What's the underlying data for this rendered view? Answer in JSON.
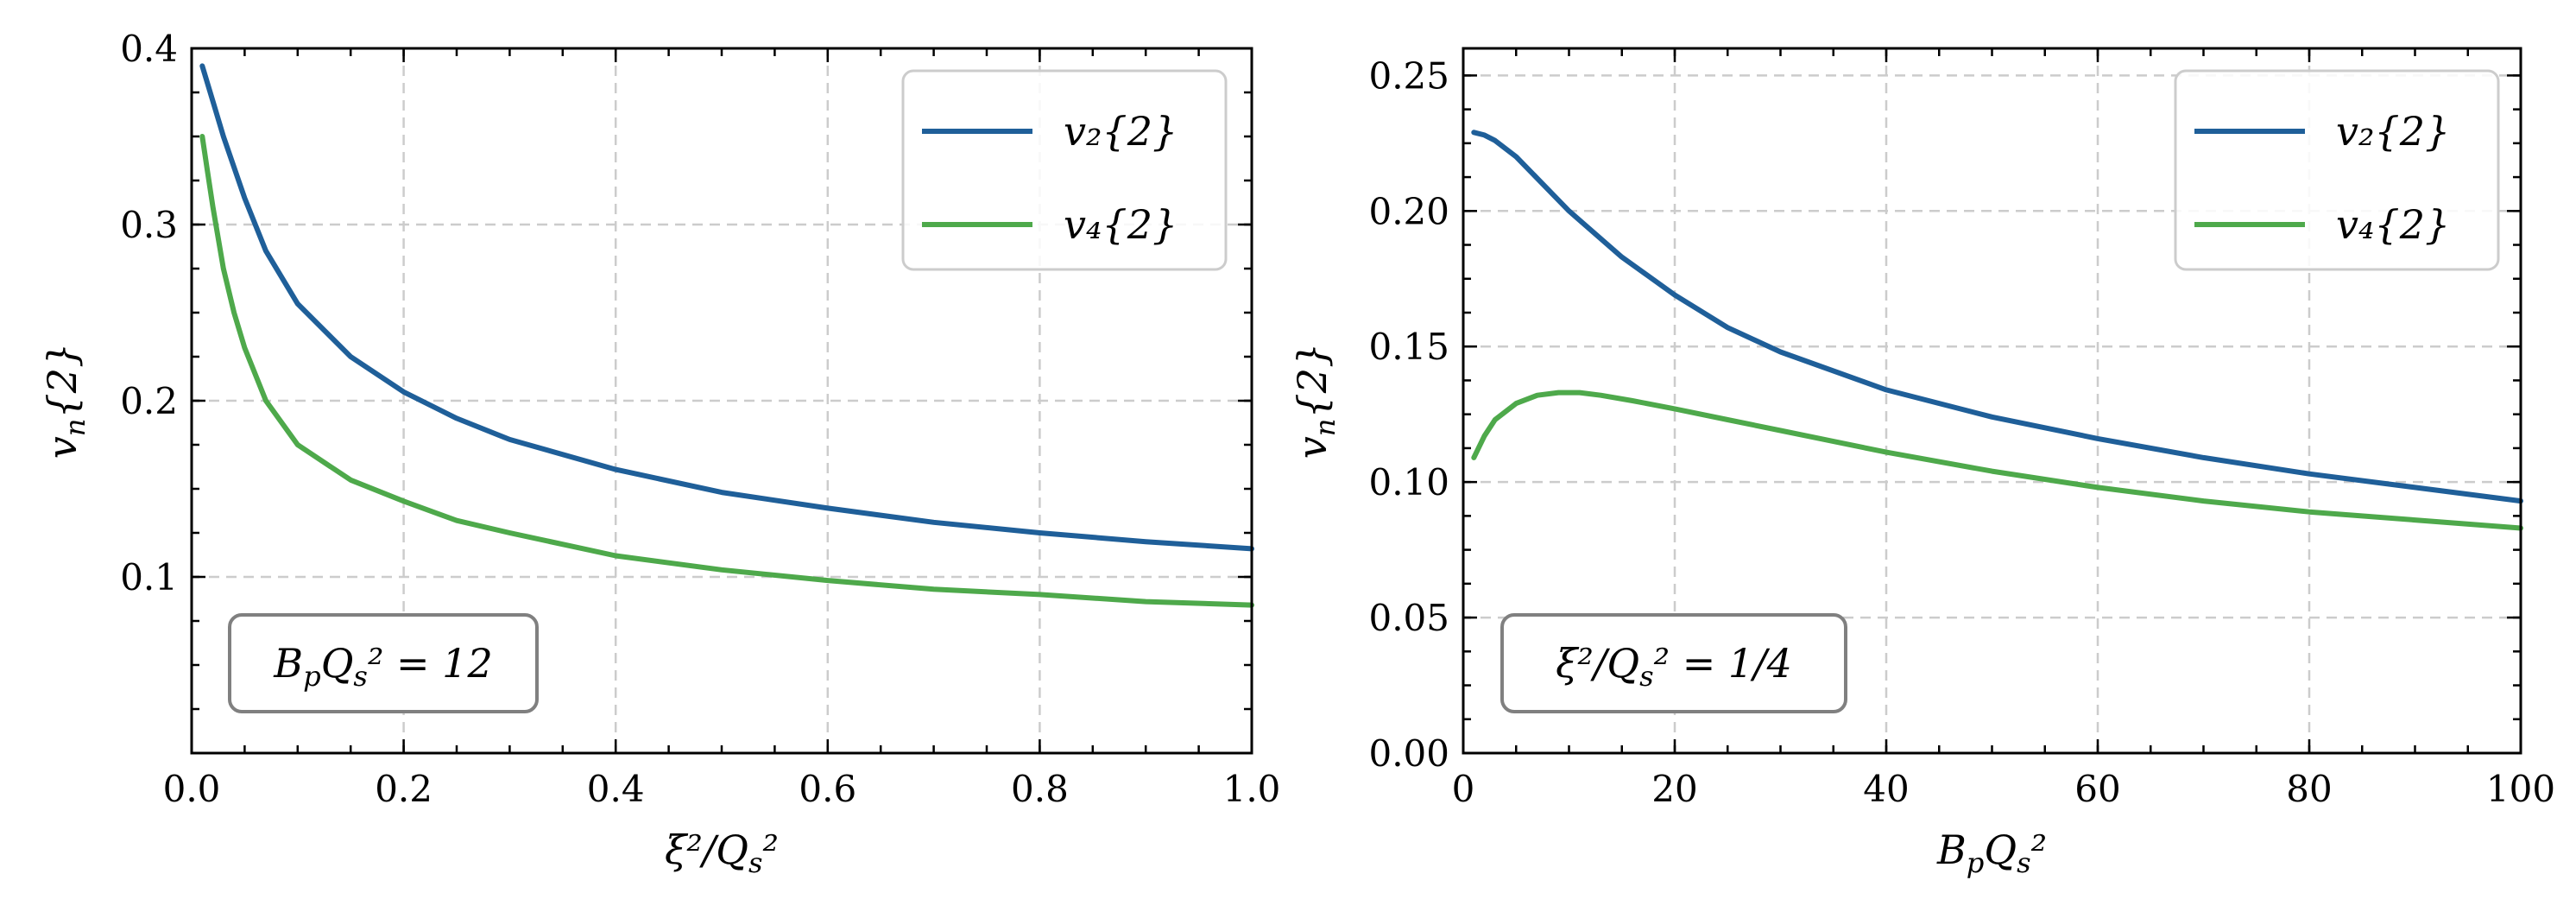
{
  "chart_data": [
    {
      "type": "line",
      "xlabel": "ξ²/Q_s²",
      "ylabel": "v_n{2}",
      "xlim": [
        0.0,
        1.0
      ],
      "ylim": [
        0.0,
        0.4
      ],
      "xticks": [
        "0.0",
        "0.2",
        "0.4",
        "0.6",
        "0.8",
        "1.0"
      ],
      "yticks": [
        "0.1",
        "0.2",
        "0.3",
        "0.4"
      ],
      "grid": true,
      "legend_position": "top-right",
      "annotation": "B_pQ_s² = 12",
      "series": [
        {
          "name": "v₂{2}",
          "color": "#1f5f99",
          "x": [
            0.01,
            0.02,
            0.03,
            0.05,
            0.07,
            0.1,
            0.15,
            0.2,
            0.25,
            0.3,
            0.4,
            0.5,
            0.6,
            0.7,
            0.8,
            0.9,
            1.0
          ],
          "y": [
            0.39,
            0.37,
            0.35,
            0.315,
            0.285,
            0.255,
            0.225,
            0.205,
            0.19,
            0.178,
            0.161,
            0.148,
            0.139,
            0.131,
            0.125,
            0.12,
            0.116
          ]
        },
        {
          "name": "v₄{2}",
          "color": "#4ea94b",
          "x": [
            0.01,
            0.015,
            0.02,
            0.03,
            0.04,
            0.05,
            0.07,
            0.1,
            0.15,
            0.2,
            0.25,
            0.3,
            0.4,
            0.5,
            0.6,
            0.7,
            0.8,
            0.9,
            1.0
          ],
          "y": [
            0.35,
            0.33,
            0.31,
            0.275,
            0.25,
            0.23,
            0.2,
            0.175,
            0.155,
            0.143,
            0.132,
            0.125,
            0.112,
            0.104,
            0.098,
            0.093,
            0.09,
            0.086,
            0.084
          ]
        }
      ]
    },
    {
      "type": "line",
      "xlabel": "B_pQ_s²",
      "ylabel": "v_n{2}",
      "xlim": [
        0,
        100
      ],
      "ylim": [
        0.0,
        0.26
      ],
      "xticks": [
        "0",
        "20",
        "40",
        "60",
        "80",
        "100"
      ],
      "yticks": [
        "0.00",
        "0.05",
        "0.10",
        "0.15",
        "0.20",
        "0.25"
      ],
      "grid": true,
      "legend_position": "top-right",
      "annotation": "ξ²/Q_s² = 1/4",
      "series": [
        {
          "name": "v₂{2}",
          "color": "#1f5f99",
          "x": [
            1,
            2,
            3,
            5,
            7,
            10,
            15,
            20,
            25,
            30,
            40,
            50,
            60,
            70,
            80,
            90,
            100
          ],
          "y": [
            0.229,
            0.228,
            0.226,
            0.22,
            0.212,
            0.2,
            0.183,
            0.169,
            0.157,
            0.148,
            0.134,
            0.124,
            0.116,
            0.109,
            0.103,
            0.098,
            0.093
          ]
        },
        {
          "name": "v₄{2}",
          "color": "#4ea94b",
          "x": [
            1,
            2,
            3,
            5,
            7,
            9,
            11,
            13,
            16,
            20,
            25,
            30,
            40,
            50,
            60,
            70,
            80,
            90,
            100
          ],
          "y": [
            0.109,
            0.117,
            0.123,
            0.129,
            0.132,
            0.133,
            0.133,
            0.132,
            0.13,
            0.127,
            0.123,
            0.119,
            0.111,
            0.104,
            0.098,
            0.093,
            0.089,
            0.086,
            0.083
          ]
        }
      ]
    }
  ]
}
